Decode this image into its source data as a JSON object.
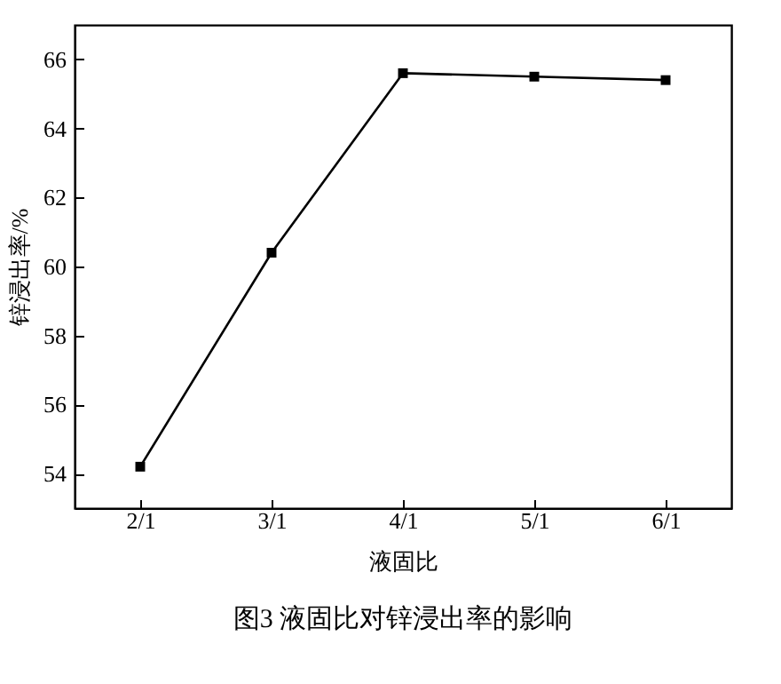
{
  "chart_data": {
    "type": "line",
    "title": "图3  液固比对锌浸出率的影响",
    "xlabel": "液固比",
    "ylabel": "锌浸出率/%",
    "categories": [
      "2/1",
      "3/1",
      "4/1",
      "5/1",
      "6/1"
    ],
    "series": [
      {
        "color": "#000000",
        "values": [
          54.2,
          60.4,
          65.6,
          65.5,
          65.4
        ]
      }
    ],
    "ylim": [
      53,
      67
    ],
    "yticks": [
      54,
      56,
      58,
      60,
      62,
      64,
      66
    ],
    "grid": false,
    "marker": "square",
    "line_style": "solid"
  }
}
